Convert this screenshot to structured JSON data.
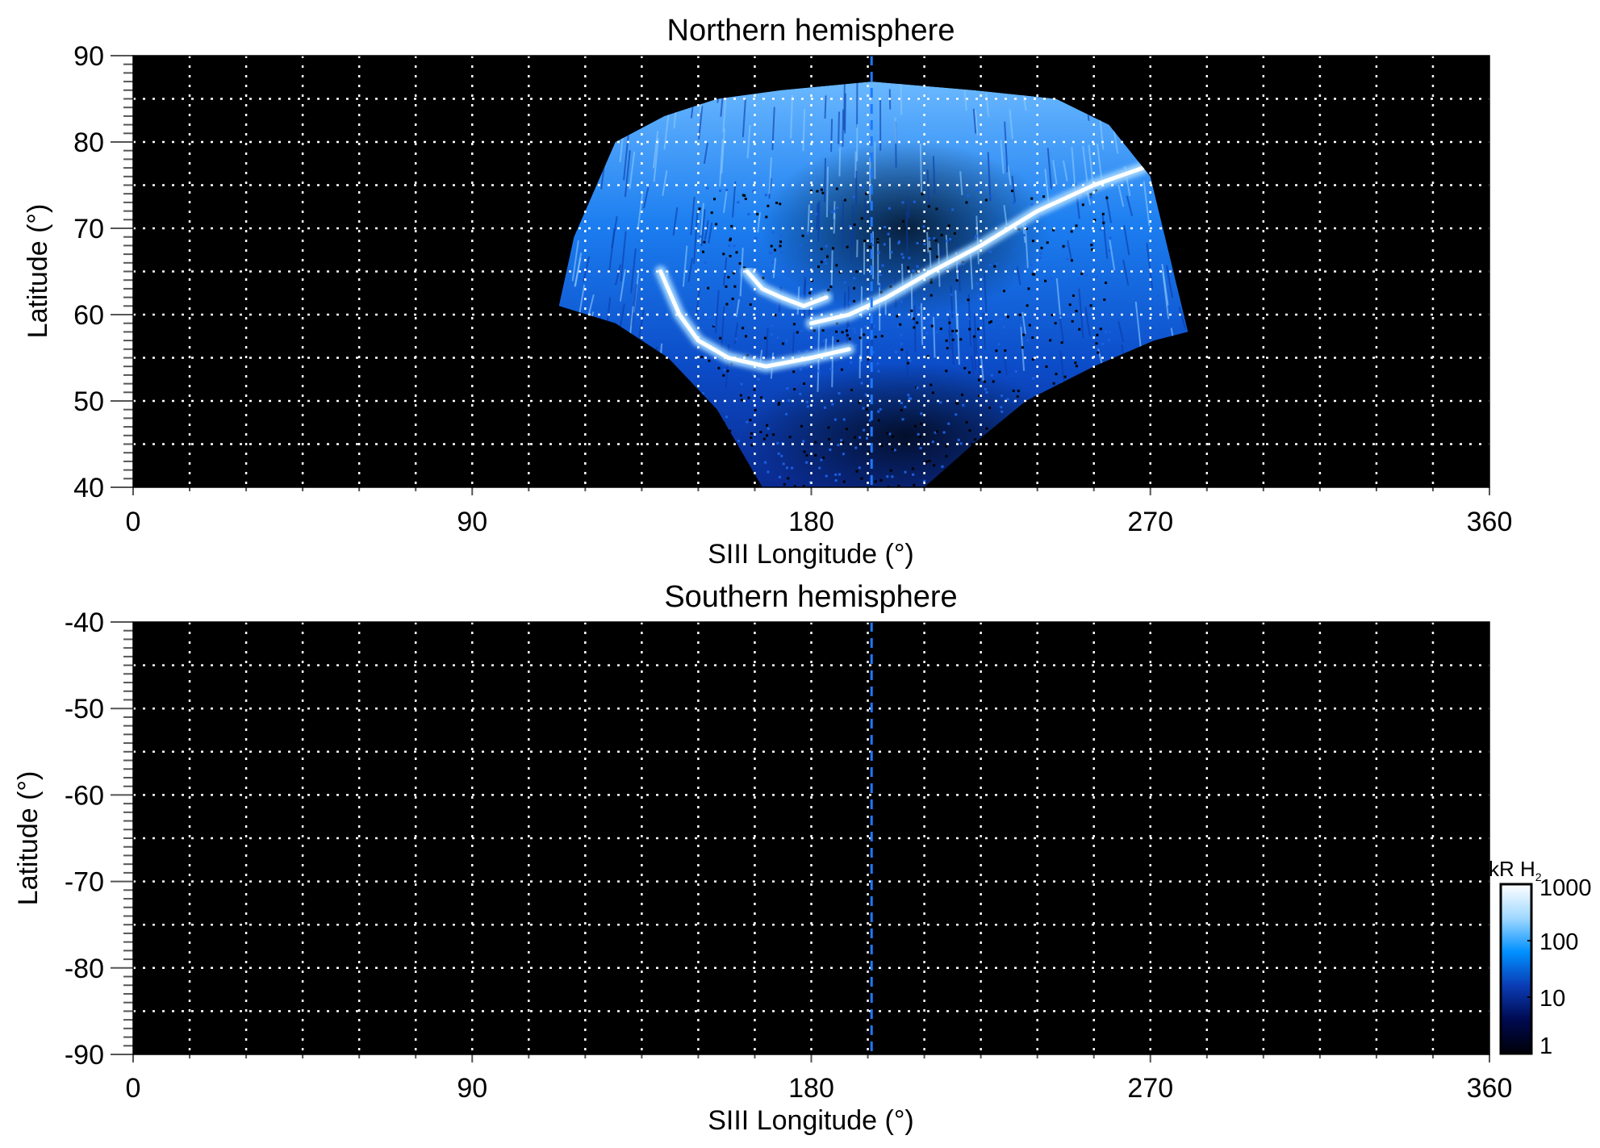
{
  "chart_data": [
    {
      "type": "heatmap",
      "title": "Northern hemisphere",
      "xlabel": "SIII Longitude (°)",
      "ylabel": "Latitude (°)",
      "xlim": [
        0,
        360
      ],
      "ylim": [
        40,
        90
      ],
      "xticks": [
        "0",
        "90",
        "180",
        "270",
        "360"
      ],
      "yticks": [
        "40",
        "50",
        "60",
        "70",
        "80",
        "90"
      ],
      "grid": true,
      "grid_style": "dotted white, 15° longitude, 5° latitude",
      "marker_longitude": 196,
      "emission_region_outline": [
        [
          113,
          61
        ],
        [
          117,
          69
        ],
        [
          128,
          80
        ],
        [
          141,
          83
        ],
        [
          155,
          85
        ],
        [
          172,
          86
        ],
        [
          196,
          87
        ],
        [
          223,
          86
        ],
        [
          245,
          85
        ],
        [
          259,
          82
        ],
        [
          270,
          76
        ],
        [
          275,
          67
        ],
        [
          280,
          58
        ],
        [
          271,
          57
        ],
        [
          255,
          54
        ],
        [
          237,
          50
        ],
        [
          223,
          45
        ],
        [
          210,
          40
        ],
        [
          167,
          40
        ],
        [
          155,
          49
        ],
        [
          142,
          55
        ],
        [
          128,
          59
        ]
      ],
      "bright_arcs": [
        [
          [
            268,
            77
          ],
          [
            255,
            75
          ],
          [
            240,
            72
          ],
          [
            225,
            68
          ],
          [
            212,
            65
          ],
          [
            200,
            62
          ],
          [
            190,
            60
          ],
          [
            180,
            59
          ]
        ],
        [
          [
            140,
            65
          ],
          [
            145,
            60
          ],
          [
            150,
            57
          ],
          [
            158,
            55
          ],
          [
            168,
            54
          ],
          [
            180,
            55
          ],
          [
            190,
            56
          ]
        ],
        [
          [
            163,
            65
          ],
          [
            167,
            63
          ],
          [
            172,
            62
          ],
          [
            178,
            61
          ],
          [
            184,
            62
          ]
        ]
      ]
    },
    {
      "type": "heatmap",
      "title": "Southern hemisphere",
      "xlabel": "SIII Longitude (°)",
      "ylabel": "Latitude (°)",
      "xlim": [
        0,
        360
      ],
      "ylim": [
        -90,
        -40
      ],
      "xticks": [
        "0",
        "90",
        "180",
        "270",
        "360"
      ],
      "yticks": [
        "-40",
        "-50",
        "-60",
        "-70",
        "-80",
        "-90"
      ],
      "grid": true,
      "grid_style": "dotted white, 15° longitude, 5° latitude",
      "marker_longitude": 196
    }
  ],
  "colorbar": {
    "label": "kR H",
    "label_subscript": "2",
    "scale": "log",
    "range": [
      1,
      1000
    ],
    "ticks": [
      "1000",
      "100",
      "10",
      "1"
    ],
    "colors": [
      "#000008",
      "#000a50",
      "#0a3cb4",
      "#0090ff",
      "#a0d8ff",
      "#ffffff"
    ]
  },
  "colors": {
    "background": "#000000",
    "grid": "#ffffff",
    "marker_line": "#1e78ff"
  }
}
